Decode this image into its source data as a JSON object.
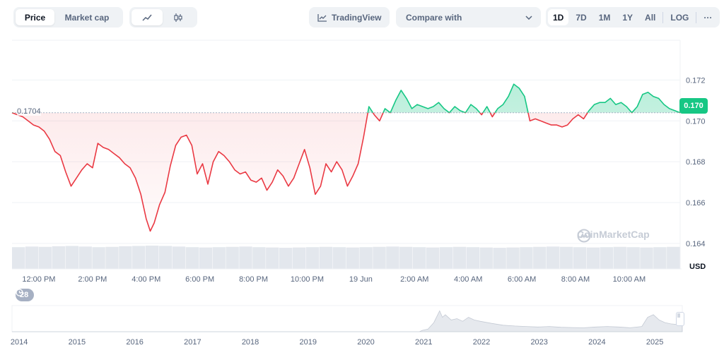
{
  "toolbar": {
    "price_label": "Price",
    "market_cap_label": "Market cap",
    "line_icon": "line-chart-icon",
    "candle_icon": "candlestick-icon",
    "tradingview_label": "TradingView",
    "compare_label": "Compare with",
    "ranges": [
      "1D",
      "7D",
      "1M",
      "1Y",
      "All"
    ],
    "active_range": "1D",
    "log_label": "LOG",
    "more_label": "···"
  },
  "chart_data": {
    "type": "line",
    "reference_price": 0.1704,
    "reference_label": "0.1704",
    "current_price_label": "0.170",
    "y_ticks": [
      "0.172",
      "0.170",
      "0.168",
      "0.166",
      "0.164"
    ],
    "y_tick_values": [
      0.172,
      0.17,
      0.168,
      0.166,
      0.164
    ],
    "ylim": [
      0.16275,
      0.17395
    ],
    "currency_label": "USD",
    "x_ticks": [
      "12:00 PM",
      "2:00 PM",
      "4:00 PM",
      "6:00 PM",
      "8:00 PM",
      "10:00 PM",
      "19 Jun",
      "2:00 AM",
      "4:00 AM",
      "6:00 AM",
      "8:00 AM",
      "10:00 AM"
    ],
    "x_hours": [
      12,
      14,
      16,
      18,
      20,
      22,
      24,
      26,
      28,
      30,
      32,
      34
    ],
    "xlim": [
      11.0,
      35.9
    ],
    "points": [
      [
        11.0,
        0.1704
      ],
      [
        11.2,
        0.1703
      ],
      [
        11.4,
        0.1702
      ],
      [
        11.6,
        0.17
      ],
      [
        11.8,
        0.1698
      ],
      [
        12.0,
        0.1697
      ],
      [
        12.2,
        0.1695
      ],
      [
        12.4,
        0.1691
      ],
      [
        12.6,
        0.1685
      ],
      [
        12.8,
        0.1683
      ],
      [
        13.0,
        0.1675
      ],
      [
        13.2,
        0.1668
      ],
      [
        13.4,
        0.1672
      ],
      [
        13.6,
        0.1676
      ],
      [
        13.8,
        0.1679
      ],
      [
        14.0,
        0.1677
      ],
      [
        14.2,
        0.1689
      ],
      [
        14.4,
        0.1687
      ],
      [
        14.6,
        0.1686
      ],
      [
        14.8,
        0.1684
      ],
      [
        15.0,
        0.1682
      ],
      [
        15.2,
        0.1679
      ],
      [
        15.4,
        0.1677
      ],
      [
        15.6,
        0.1672
      ],
      [
        15.8,
        0.1664
      ],
      [
        16.0,
        0.1652
      ],
      [
        16.15,
        0.1646
      ],
      [
        16.3,
        0.165
      ],
      [
        16.5,
        0.1659
      ],
      [
        16.7,
        0.1665
      ],
      [
        16.9,
        0.1678
      ],
      [
        17.1,
        0.1688
      ],
      [
        17.3,
        0.1692
      ],
      [
        17.5,
        0.1693
      ],
      [
        17.7,
        0.1688
      ],
      [
        17.9,
        0.1674
      ],
      [
        18.1,
        0.1679
      ],
      [
        18.3,
        0.1669
      ],
      [
        18.5,
        0.168
      ],
      [
        18.7,
        0.1685
      ],
      [
        18.9,
        0.1683
      ],
      [
        19.1,
        0.168
      ],
      [
        19.3,
        0.1676
      ],
      [
        19.5,
        0.1674
      ],
      [
        19.7,
        0.1675
      ],
      [
        19.9,
        0.1671
      ],
      [
        20.1,
        0.167
      ],
      [
        20.3,
        0.1672
      ],
      [
        20.5,
        0.1666
      ],
      [
        20.7,
        0.167
      ],
      [
        20.9,
        0.1676
      ],
      [
        21.1,
        0.1673
      ],
      [
        21.3,
        0.1668
      ],
      [
        21.5,
        0.1672
      ],
      [
        21.7,
        0.1679
      ],
      [
        21.9,
        0.1686
      ],
      [
        22.1,
        0.1677
      ],
      [
        22.3,
        0.1664
      ],
      [
        22.5,
        0.1668
      ],
      [
        22.7,
        0.1679
      ],
      [
        22.9,
        0.1675
      ],
      [
        23.1,
        0.168
      ],
      [
        23.3,
        0.1676
      ],
      [
        23.5,
        0.1668
      ],
      [
        23.7,
        0.1673
      ],
      [
        23.9,
        0.1679
      ],
      [
        24.1,
        0.1692
      ],
      [
        24.3,
        0.1707
      ],
      [
        24.5,
        0.1703
      ],
      [
        24.7,
        0.17
      ],
      [
        24.9,
        0.1706
      ],
      [
        25.1,
        0.1704
      ],
      [
        25.3,
        0.171
      ],
      [
        25.5,
        0.1715
      ],
      [
        25.7,
        0.1711
      ],
      [
        25.9,
        0.1706
      ],
      [
        26.1,
        0.1708
      ],
      [
        26.3,
        0.1707
      ],
      [
        26.5,
        0.1706
      ],
      [
        26.7,
        0.1707
      ],
      [
        26.9,
        0.1709
      ],
      [
        27.1,
        0.1706
      ],
      [
        27.3,
        0.1704
      ],
      [
        27.5,
        0.1707
      ],
      [
        27.7,
        0.1705
      ],
      [
        27.9,
        0.1704
      ],
      [
        28.1,
        0.1708
      ],
      [
        28.3,
        0.1706
      ],
      [
        28.5,
        0.1703
      ],
      [
        28.7,
        0.1707
      ],
      [
        28.9,
        0.1702
      ],
      [
        29.1,
        0.1706
      ],
      [
        29.3,
        0.1708
      ],
      [
        29.5,
        0.1712
      ],
      [
        29.7,
        0.1718
      ],
      [
        29.9,
        0.1716
      ],
      [
        30.1,
        0.1712
      ],
      [
        30.3,
        0.17
      ],
      [
        30.5,
        0.1701
      ],
      [
        30.7,
        0.17
      ],
      [
        30.9,
        0.1699
      ],
      [
        31.1,
        0.1698
      ],
      [
        31.3,
        0.1698
      ],
      [
        31.5,
        0.1697
      ],
      [
        31.7,
        0.1698
      ],
      [
        31.9,
        0.1701
      ],
      [
        32.1,
        0.1703
      ],
      [
        32.3,
        0.1701
      ],
      [
        32.5,
        0.1705
      ],
      [
        32.7,
        0.1708
      ],
      [
        32.9,
        0.1709
      ],
      [
        33.1,
        0.1709
      ],
      [
        33.3,
        0.1711
      ],
      [
        33.5,
        0.1708
      ],
      [
        33.7,
        0.1709
      ],
      [
        33.9,
        0.1707
      ],
      [
        34.1,
        0.1704
      ],
      [
        34.3,
        0.1707
      ],
      [
        34.5,
        0.1713
      ],
      [
        34.7,
        0.1714
      ],
      [
        34.9,
        0.1712
      ],
      [
        35.1,
        0.1711
      ],
      [
        35.3,
        0.1708
      ],
      [
        35.5,
        0.1706
      ],
      [
        35.7,
        0.1705
      ],
      [
        35.9,
        0.1704
      ]
    ],
    "volume_levels": [
      0.7,
      0.72,
      0.71,
      0.73,
      0.74,
      0.72,
      0.7,
      0.71,
      0.73,
      0.74,
      0.75,
      0.74,
      0.72,
      0.7,
      0.69,
      0.7,
      0.71,
      0.72,
      0.7,
      0.69,
      0.68,
      0.69,
      0.7,
      0.71,
      0.7,
      0.69,
      0.7,
      0.71,
      0.72,
      0.71,
      0.7,
      0.69,
      0.7,
      0.71,
      0.7,
      0.69,
      0.68,
      0.69,
      0.7,
      0.71,
      0.72,
      0.71,
      0.7,
      0.69,
      0.7,
      0.71,
      0.7,
      0.69,
      0.7,
      0.71
    ],
    "watermark": "CoinMarketCap",
    "badge_count": "28",
    "overview_x_ticks": [
      "2014",
      "2015",
      "2016",
      "2017",
      "2018",
      "2019",
      "2020",
      "2021",
      "2022",
      "2023",
      "2024",
      "2025"
    ],
    "overview_years": [
      2014,
      2015,
      2016,
      2017,
      2018,
      2019,
      2020,
      2021,
      2022,
      2023,
      2024,
      2025
    ],
    "overview_xlim": [
      2013.9,
      2025.5
    ],
    "overview_points": [
      [
        2013.9,
        0
      ],
      [
        2020.95,
        0
      ],
      [
        2021.0,
        0.05
      ],
      [
        2021.1,
        0.1
      ],
      [
        2021.2,
        0.35
      ],
      [
        2021.3,
        0.8
      ],
      [
        2021.35,
        0.55
      ],
      [
        2021.4,
        0.65
      ],
      [
        2021.5,
        0.45
      ],
      [
        2021.6,
        0.5
      ],
      [
        2021.7,
        0.4
      ],
      [
        2021.8,
        0.55
      ],
      [
        2021.9,
        0.45
      ],
      [
        2022.0,
        0.4
      ],
      [
        2022.2,
        0.32
      ],
      [
        2022.4,
        0.25
      ],
      [
        2022.6,
        0.22
      ],
      [
        2022.8,
        0.2
      ],
      [
        2023.0,
        0.18
      ],
      [
        2023.2,
        0.2
      ],
      [
        2023.4,
        0.17
      ],
      [
        2023.6,
        0.16
      ],
      [
        2023.8,
        0.15
      ],
      [
        2024.0,
        0.18
      ],
      [
        2024.2,
        0.2
      ],
      [
        2024.4,
        0.18
      ],
      [
        2024.6,
        0.15
      ],
      [
        2024.8,
        0.2
      ],
      [
        2024.9,
        0.55
      ],
      [
        2025.0,
        0.65
      ],
      [
        2025.1,
        0.45
      ],
      [
        2025.2,
        0.35
      ],
      [
        2025.3,
        0.3
      ],
      [
        2025.4,
        0.28
      ],
      [
        2025.5,
        0.3
      ]
    ],
    "up_color": "#16c784",
    "down_color": "#ea3943"
  }
}
